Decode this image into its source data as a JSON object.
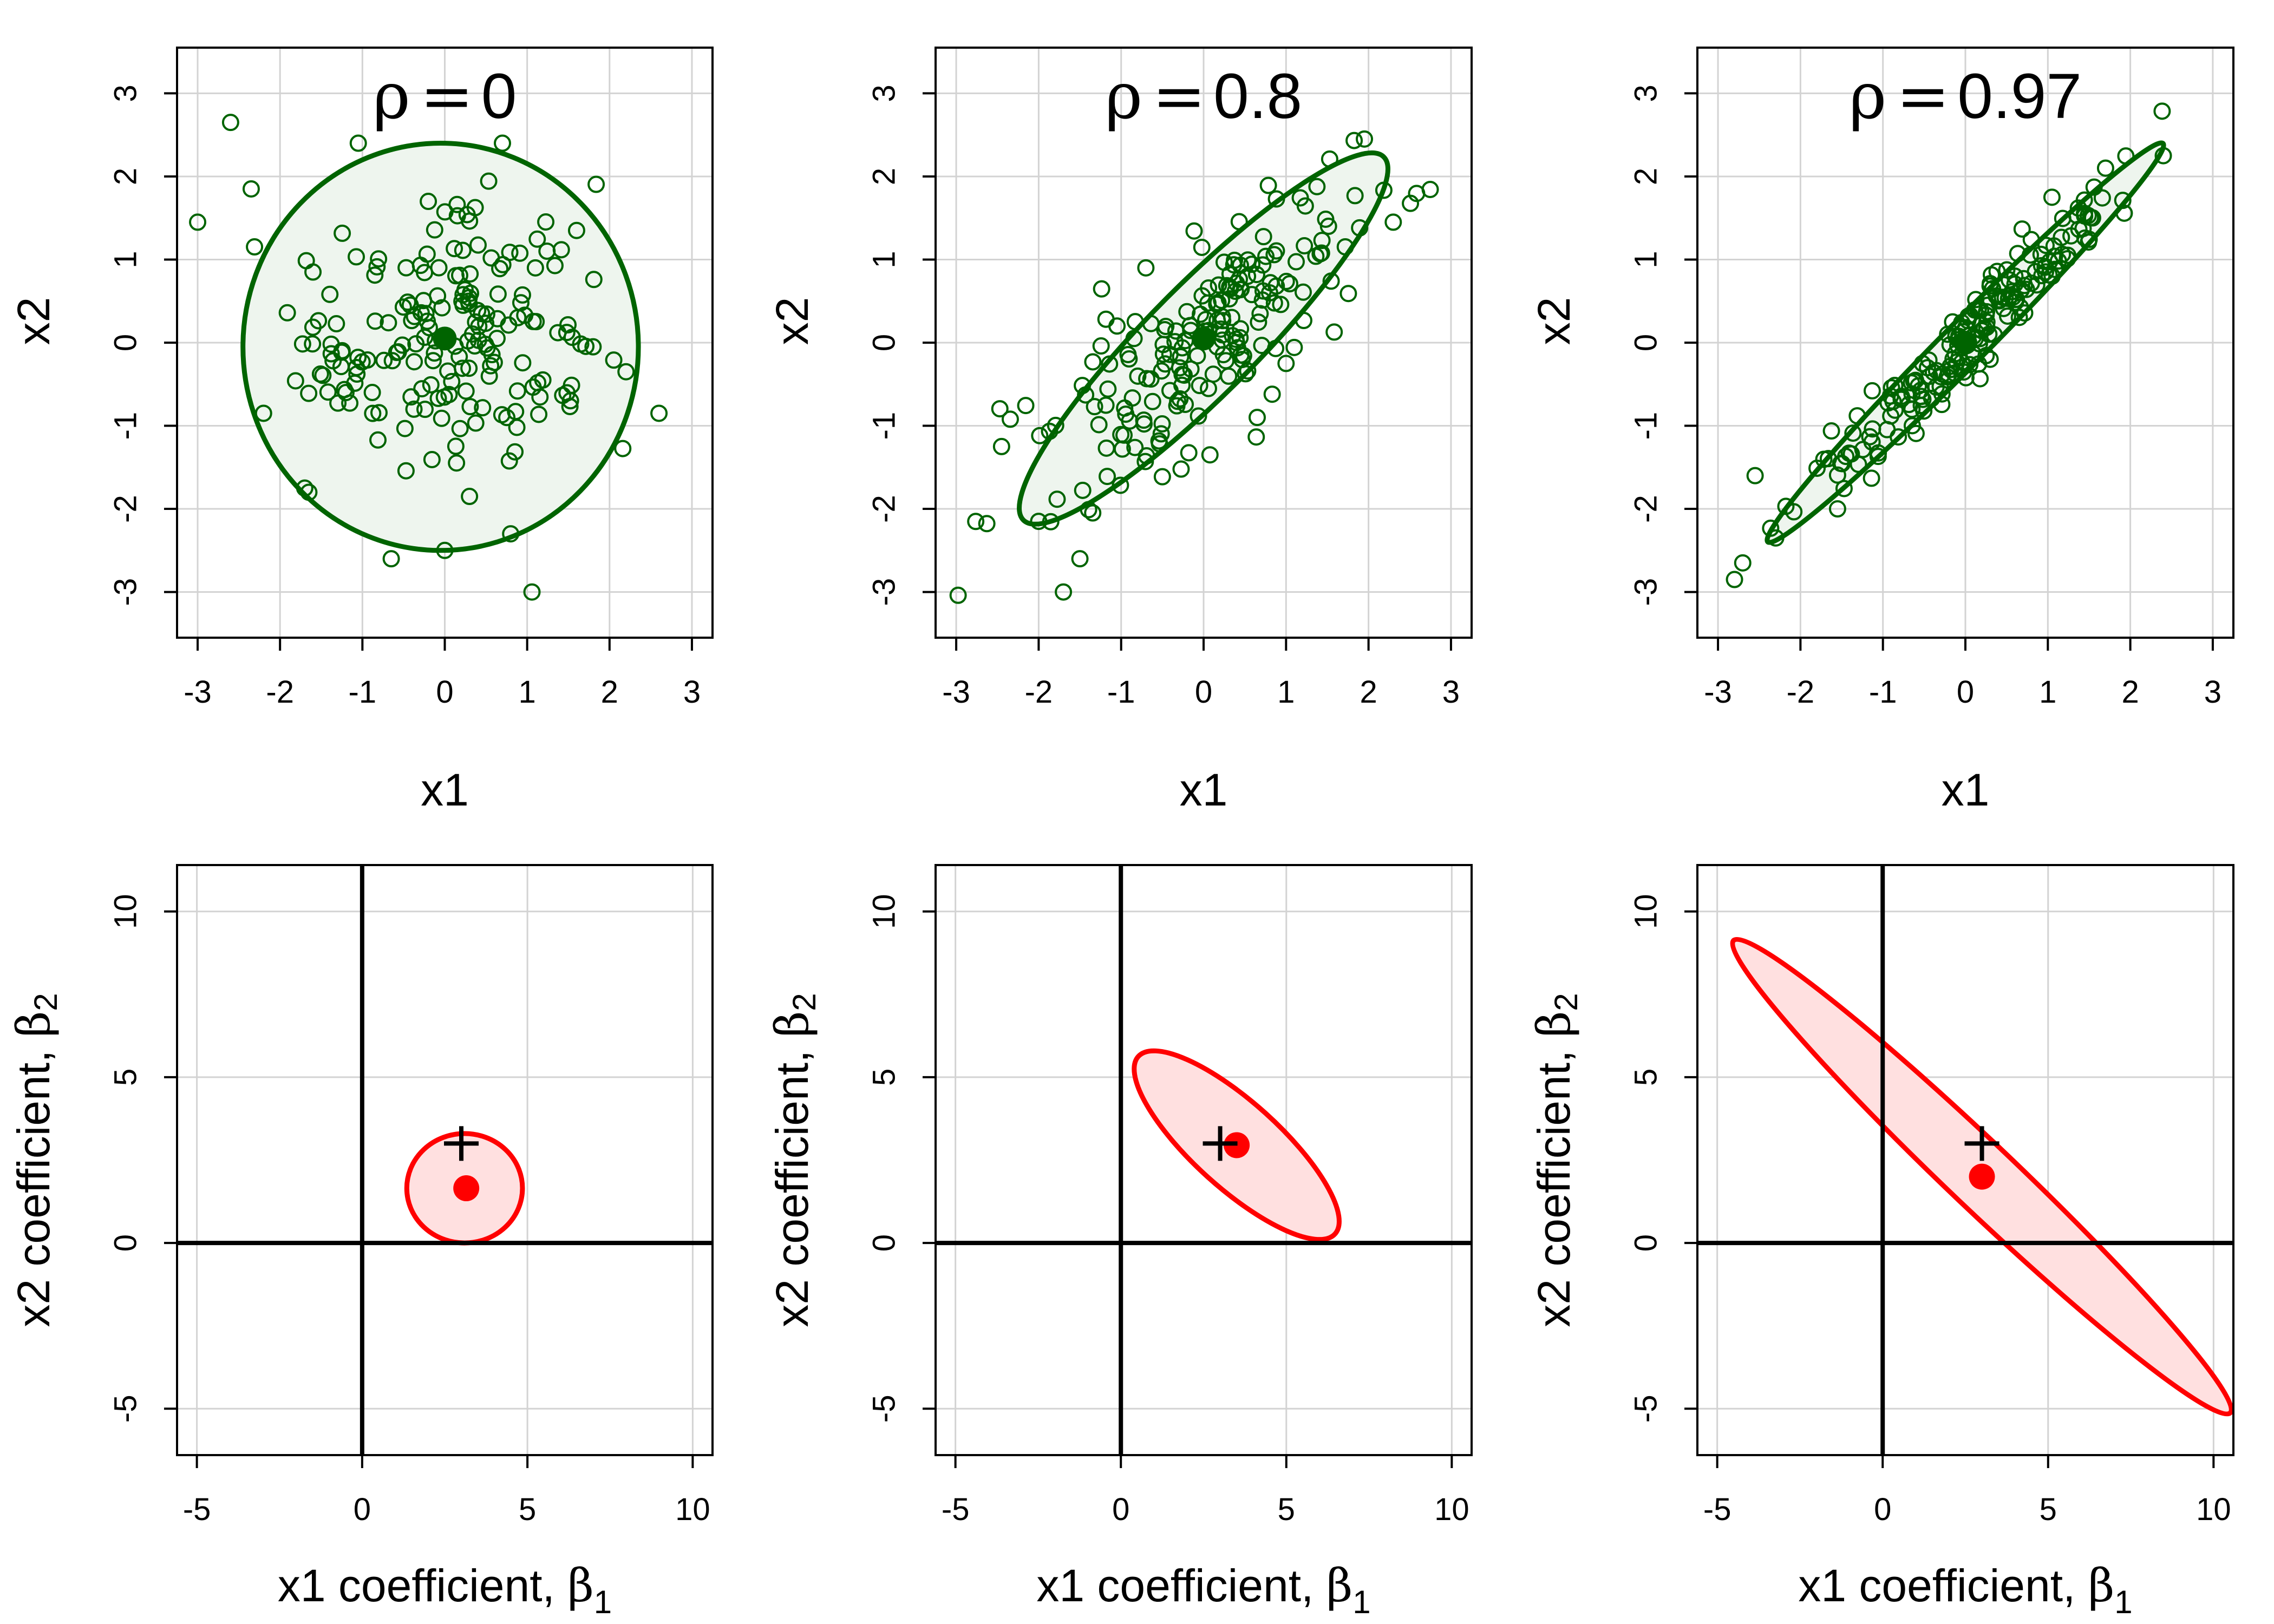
{
  "figure": {
    "colors": {
      "data_green": "#006400",
      "green_fill": "#eef5ee",
      "coef_red": "#ff0000",
      "red_fill": "#ffe0e0",
      "grid": "#d3d3d3",
      "axis": "#000000"
    }
  },
  "chart_data": [
    {
      "type": "scatter",
      "panel": "data-rho-0",
      "title_symbol": "ρ",
      "title_equals": "=",
      "title_value": "0",
      "xlabel": "x1",
      "ylabel": "x2",
      "xlim": [
        -3.25,
        3.25
      ],
      "ylim": [
        -3.55,
        3.55
      ],
      "xticks": [
        -3,
        -2,
        -1,
        0,
        1,
        2,
        3
      ],
      "yticks": [
        -3,
        -2,
        -1,
        0,
        1,
        2,
        3
      ],
      "tick_labels_x": [
        "-3",
        "-2",
        "-1",
        "0",
        "1",
        "2",
        "3"
      ],
      "tick_labels_y": [
        "-3",
        "-2",
        "-1",
        "0",
        "1",
        "2",
        "3"
      ],
      "grid": true,
      "rho": 0,
      "n_points": 200,
      "points_note": "standard bivariate normal sample, about 200 points",
      "points": [
        [
          -3.0,
          1.45
        ],
        [
          -2.6,
          2.65
        ],
        [
          -2.35,
          1.85
        ],
        [
          -2.2,
          -0.85
        ],
        [
          -1.7,
          -1.75
        ],
        [
          -1.65,
          -1.8
        ],
        [
          -1.05,
          2.4
        ],
        [
          -0.65,
          -2.6
        ],
        [
          0.0,
          -2.5
        ],
        [
          0.7,
          2.4
        ],
        [
          0.8,
          -2.3
        ],
        [
          2.6,
          -0.85
        ],
        [
          2.2,
          -0.35
        ],
        [
          1.8,
          -0.05
        ],
        [
          1.6,
          1.35
        ],
        [
          -1.6,
          0.85
        ],
        [
          -0.2,
          1.7
        ],
        [
          0.3,
          -1.85
        ],
        [
          -1.2,
          -0.6
        ],
        [
          1.1,
          0.9
        ]
      ],
      "center": [
        0.0,
        0.05
      ],
      "ellipse": {
        "cx": -0.05,
        "cy": -0.05,
        "rx": 2.4,
        "ry": 2.45,
        "angle": 0
      }
    },
    {
      "type": "scatter",
      "panel": "data-rho-0.8",
      "title_symbol": "ρ",
      "title_equals": "=",
      "title_value": "0.8",
      "xlabel": "x1",
      "ylabel": "x2",
      "xlim": [
        -3.25,
        3.25
      ],
      "ylim": [
        -3.55,
        3.55
      ],
      "xticks": [
        -3,
        -2,
        -1,
        0,
        1,
        2,
        3
      ],
      "yticks": [
        -3,
        -2,
        -1,
        0,
        1,
        2,
        3
      ],
      "tick_labels_x": [
        "-3",
        "-2",
        "-1",
        "0",
        "1",
        "2",
        "3"
      ],
      "tick_labels_y": [
        "-3",
        "-2",
        "-1",
        "0",
        "1",
        "2",
        "3"
      ],
      "grid": true,
      "rho": 0.8,
      "n_points": 200,
      "points_note": "bivariate normal sample with correlation 0.8",
      "points": [
        [
          -2.45,
          -1.25
        ],
        [
          -2.0,
          -2.15
        ],
        [
          -1.7,
          -3.0
        ],
        [
          -1.5,
          -2.6
        ],
        [
          1.95,
          2.45
        ],
        [
          2.3,
          1.45
        ],
        [
          1.0,
          -0.25
        ],
        [
          0.65,
          -0.9
        ],
        [
          -0.7,
          0.9
        ],
        [
          -1.05,
          0.2
        ]
      ],
      "center": [
        0.0,
        0.05
      ],
      "ellipse": {
        "cx": 0.0,
        "cy": 0.05,
        "major_semi": 3.09,
        "minor_semi": 0.66,
        "angle": 45
      }
    },
    {
      "type": "scatter",
      "panel": "data-rho-0.97",
      "title_symbol": "ρ",
      "title_equals": "=",
      "title_value": "0.97",
      "xlabel": "x1",
      "ylabel": "x2",
      "xlim": [
        -3.25,
        3.25
      ],
      "ylim": [
        -3.55,
        3.55
      ],
      "xticks": [
        -3,
        -2,
        -1,
        0,
        1,
        2,
        3
      ],
      "yticks": [
        -3,
        -2,
        -1,
        0,
        1,
        2,
        3
      ],
      "tick_labels_x": [
        "-3",
        "-2",
        "-1",
        "0",
        "1",
        "2",
        "3"
      ],
      "tick_labels_y": [
        "-3",
        "-2",
        "-1",
        "0",
        "1",
        "2",
        "3"
      ],
      "grid": true,
      "rho": 0.97,
      "n_points": 200,
      "points_note": "bivariate normal sample with correlation 0.97",
      "points": [
        [
          -2.8,
          -2.85
        ],
        [
          -2.7,
          -2.65
        ],
        [
          -2.55,
          -1.6
        ],
        [
          -2.3,
          -2.35
        ],
        [
          -1.55,
          -2.0
        ],
        [
          2.4,
          2.25
        ],
        [
          1.7,
          2.1
        ],
        [
          1.05,
          1.75
        ],
        [
          0.3,
          -0.2
        ]
      ],
      "center": [
        0.0,
        0.0
      ],
      "ellipse": {
        "cx": 0.0,
        "cy": 0.0,
        "major_semi": 3.39,
        "minor_semi": 0.26,
        "angle": 45
      }
    },
    {
      "type": "scatter",
      "panel": "coef-rho-0",
      "xlabel_text": "x1 coefficient, ",
      "xlabel_symbol": "β",
      "xlabel_sub": "1",
      "ylabel_text": "x2 coefficient, ",
      "ylabel_symbol": "β",
      "ylabel_sub": "2",
      "xlim": [
        -5.6,
        10.6
      ],
      "ylim": [
        -6.4,
        11.4
      ],
      "xticks": [
        -5,
        0,
        5,
        10
      ],
      "yticks": [
        -5,
        0,
        5,
        10
      ],
      "tick_labels_x": [
        "-5",
        "0",
        "5",
        "10"
      ],
      "tick_labels_y": [
        "-5",
        "0",
        "5",
        "10"
      ],
      "grid": true,
      "reference_lines": {
        "x": 0,
        "y": 0
      },
      "true_beta": [
        3,
        3
      ],
      "estimate": [
        3.15,
        1.65
      ],
      "ellipse": {
        "cx": 3.1,
        "cy": 1.65,
        "rx": 1.75,
        "ry": 1.65,
        "angle": 0
      }
    },
    {
      "type": "scatter",
      "panel": "coef-rho-0.8",
      "xlabel_text": "x1 coefficient, ",
      "xlabel_symbol": "β",
      "xlabel_sub": "1",
      "ylabel_text": "x2 coefficient, ",
      "ylabel_symbol": "β",
      "ylabel_sub": "2",
      "xlim": [
        -5.6,
        10.6
      ],
      "ylim": [
        -6.4,
        11.4
      ],
      "xticks": [
        -5,
        0,
        5,
        10
      ],
      "yticks": [
        -5,
        0,
        5,
        10
      ],
      "tick_labels_x": [
        "-5",
        "0",
        "5",
        "10"
      ],
      "tick_labels_y": [
        "-5",
        "0",
        "5",
        "10"
      ],
      "grid": true,
      "reference_lines": {
        "x": 0,
        "y": 0
      },
      "true_beta": [
        3,
        3
      ],
      "estimate": [
        3.5,
        2.95
      ],
      "ellipse": {
        "cx": 3.5,
        "cy": 2.95,
        "major_semi": 4.0,
        "minor_semi": 1.3,
        "angle": -42
      }
    },
    {
      "type": "scatter",
      "panel": "coef-rho-0.97",
      "xlabel_text": "x1 coefficient, ",
      "xlabel_symbol": "β",
      "xlabel_sub": "1",
      "ylabel_text": "x2 coefficient, ",
      "ylabel_symbol": "β",
      "ylabel_sub": "2",
      "xlim": [
        -5.6,
        10.6
      ],
      "ylim": [
        -6.4,
        11.4
      ],
      "xticks": [
        -5,
        0,
        5,
        10
      ],
      "yticks": [
        -5,
        0,
        5,
        10
      ],
      "tick_labels_x": [
        "-5",
        "0",
        "5",
        "10"
      ],
      "tick_labels_y": [
        "-5",
        "0",
        "5",
        "10"
      ],
      "grid": true,
      "reference_lines": {
        "x": 0,
        "y": 0
      },
      "true_beta": [
        3,
        3
      ],
      "estimate": [
        3.0,
        2.0
      ],
      "ellipse": {
        "cx": 3.0,
        "cy": 2.0,
        "major_semi": 10.35,
        "minor_semi": 1.0,
        "angle": -43.5
      }
    }
  ]
}
